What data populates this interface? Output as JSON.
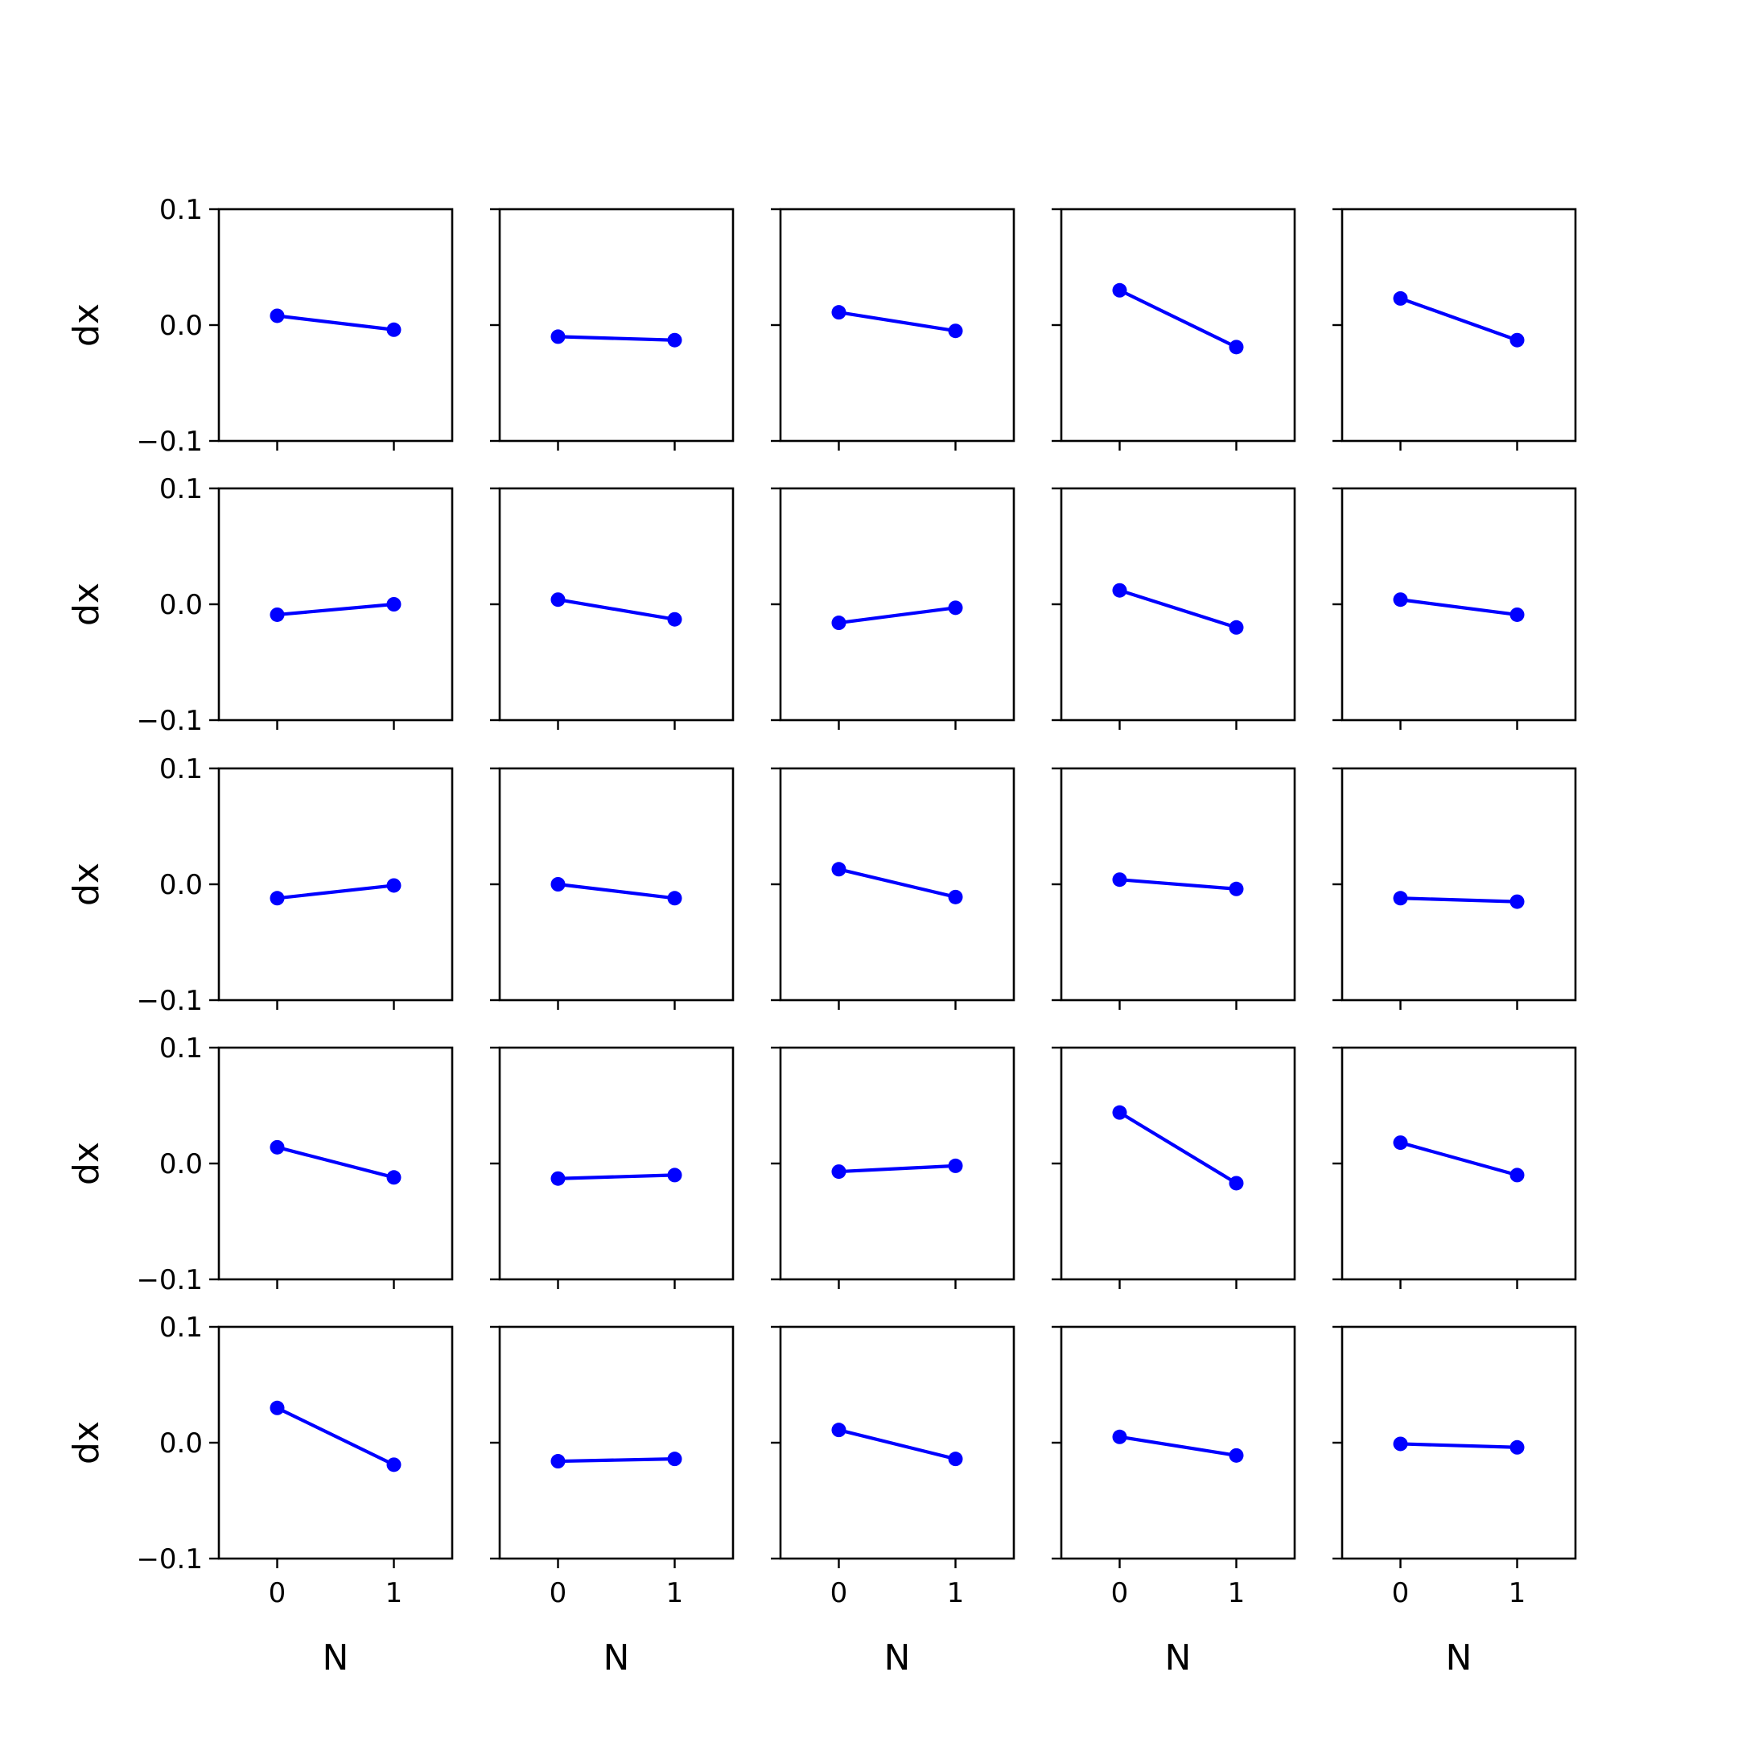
{
  "chart_data": {
    "type": "line",
    "layout": "5x5 grid of small multiples",
    "shared_x": true,
    "shared_y": true,
    "xlabel": "N",
    "ylabel": "dx",
    "xlim": [
      -0.5,
      1.5
    ],
    "ylim": [
      -0.1,
      0.1
    ],
    "x": [
      0,
      1
    ],
    "xticks": [
      0,
      1
    ],
    "xtick_labels": [
      "0",
      "1"
    ],
    "yticks": [
      0.1,
      0.0,
      -0.1
    ],
    "ytick_labels": [
      "0.1",
      "0.0",
      "−0.1"
    ],
    "grid": false,
    "line_color": "#0000ff",
    "marker": "circle",
    "panels": [
      [
        [
          0.008,
          -0.004
        ],
        [
          -0.01,
          -0.013
        ],
        [
          0.011,
          -0.005
        ],
        [
          0.03,
          -0.019
        ],
        [
          0.023,
          -0.013
        ]
      ],
      [
        [
          -0.009,
          0.0
        ],
        [
          0.004,
          -0.013
        ],
        [
          -0.016,
          -0.003
        ],
        [
          0.012,
          -0.02
        ],
        [
          0.004,
          -0.009
        ]
      ],
      [
        [
          -0.012,
          -0.001
        ],
        [
          0.0,
          -0.012
        ],
        [
          0.013,
          -0.011
        ],
        [
          0.004,
          -0.004
        ],
        [
          -0.012,
          -0.015
        ]
      ],
      [
        [
          0.014,
          -0.012
        ],
        [
          -0.013,
          -0.01
        ],
        [
          -0.007,
          -0.002
        ],
        [
          0.044,
          -0.017
        ],
        [
          0.018,
          -0.01
        ]
      ],
      [
        [
          0.03,
          -0.019
        ],
        [
          -0.016,
          -0.014
        ],
        [
          0.011,
          -0.014
        ],
        [
          0.005,
          -0.011
        ],
        [
          -0.001,
          -0.004
        ]
      ]
    ]
  }
}
